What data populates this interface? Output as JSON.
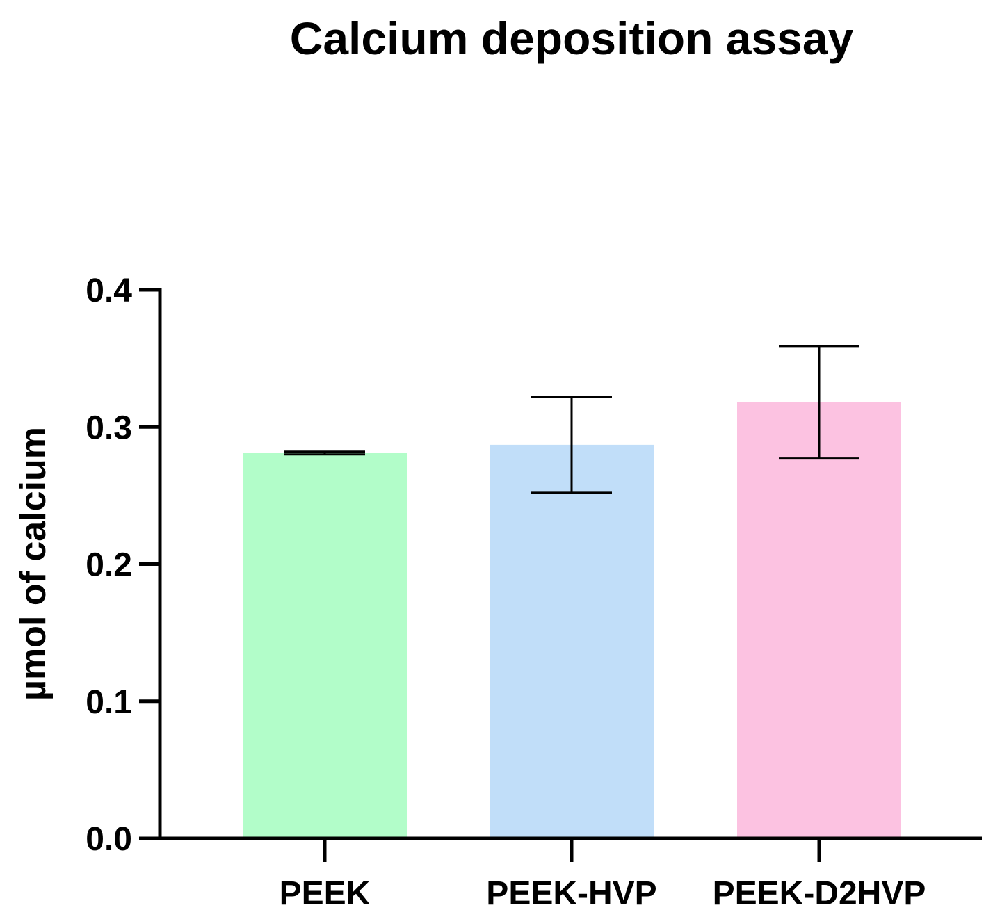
{
  "chart_data": {
    "type": "bar",
    "title": "Calcium deposition assay",
    "xlabel": "",
    "ylabel": "µmol of calcium",
    "categories": [
      "PEEK",
      "PEEK-HVP",
      "PEEK-D2HVP"
    ],
    "values": [
      0.281,
      0.287,
      0.318
    ],
    "error": [
      0.001,
      0.035,
      0.041
    ],
    "colors": [
      "#b2fdc9",
      "#c1def9",
      "#fcc2e1"
    ],
    "ylim": [
      0,
      0.4
    ],
    "yticks": [
      {
        "value": 0.0,
        "label": "0.0"
      },
      {
        "value": 0.1,
        "label": "0.1"
      },
      {
        "value": 0.2,
        "label": "0.2"
      },
      {
        "value": 0.3,
        "label": "0.3"
      },
      {
        "value": 0.4,
        "label": "0.4"
      }
    ],
    "grid": false,
    "legend": "none"
  }
}
